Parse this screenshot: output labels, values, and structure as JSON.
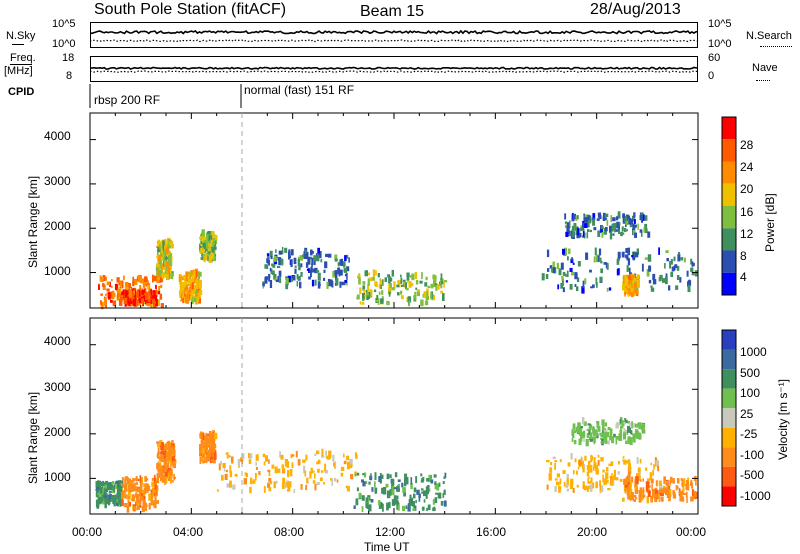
{
  "header": {
    "station": "South Pole Station (fitACF)",
    "beam": "Beam 15",
    "date": "28/Aug/2013"
  },
  "noise_panel": {
    "left_label": "N.Sky",
    "left_ticks": [
      "10^5",
      "10^0"
    ],
    "right_label": "N.Search",
    "right_ticks": [
      "10^5",
      "10^0"
    ]
  },
  "freq_panel": {
    "left_label_1": "Freq.",
    "left_label_2": "[MHz]",
    "left_ticks": [
      "18",
      "8"
    ],
    "right_label": "Nave",
    "right_ticks": [
      "60",
      "0"
    ]
  },
  "cpid": {
    "label": "CPID",
    "mode_1": "rbsp 200 RF",
    "mode_2": "normal (fast) 151 RF"
  },
  "colors": {
    "power_scale": [
      "#0000ff",
      "#2a4fb0",
      "#3f8f5f",
      "#7fbf3f",
      "#f0c000",
      "#ff8c00",
      "#ff5a00",
      "#ff0000"
    ],
    "velocity_scale": [
      "#2a3fc0",
      "#3a6aa0",
      "#3f8f5f",
      "#6fc050",
      "#c8c8bc",
      "#ffb000",
      "#ff8c1a",
      "#ff5a14",
      "#ff0000"
    ]
  },
  "chart_data": [
    {
      "type": "heatmap",
      "name": "Power panel",
      "ylabel": "Slant Range [km]",
      "yticks": [
        "1000",
        "2000",
        "3000",
        "4000"
      ],
      "ylim": [
        200,
        4600
      ],
      "colorbar_label": "Power [dB]",
      "colorbar_ticks": [
        "28",
        "24",
        "20",
        "16",
        "12",
        "8",
        "4"
      ],
      "colorbar_range": [
        0,
        32
      ],
      "regions": [
        {
          "t0": 0.3,
          "t1": 2.8,
          "r0": 250,
          "r1": 900,
          "level": 24
        },
        {
          "t0": 1.2,
          "t1": 2.6,
          "r0": 300,
          "r1": 600,
          "level": 28
        },
        {
          "t0": 2.6,
          "t1": 3.2,
          "r0": 900,
          "r1": 1700,
          "level": 16
        },
        {
          "t0": 3.5,
          "t1": 4.3,
          "r0": 350,
          "r1": 1000,
          "level": 20
        },
        {
          "t0": 4.3,
          "t1": 4.9,
          "r0": 1300,
          "r1": 1900,
          "level": 14
        },
        {
          "t0": 6.8,
          "t1": 10.2,
          "r0": 700,
          "r1": 1500,
          "level": 8
        },
        {
          "t0": 10.5,
          "t1": 14.0,
          "r0": 300,
          "r1": 1000,
          "level": 14
        },
        {
          "t0": 17.8,
          "t1": 23.9,
          "r0": 600,
          "r1": 1500,
          "level": 8
        },
        {
          "t0": 18.7,
          "t1": 22.0,
          "r0": 1800,
          "r1": 2300,
          "level": 8
        },
        {
          "t0": 21.0,
          "t1": 21.6,
          "r0": 500,
          "r1": 900,
          "level": 20
        }
      ]
    },
    {
      "type": "heatmap",
      "name": "Velocity panel",
      "ylabel": "Slant Range [km]",
      "yticks": [
        "1000",
        "2000",
        "3000",
        "4000"
      ],
      "ylim": [
        200,
        4600
      ],
      "xlabel": "Time UT",
      "xticks": [
        "00:00",
        "04:00",
        "08:00",
        "12:00",
        "16:00",
        "20:00",
        "00:00"
      ],
      "xlim": [
        0,
        24
      ],
      "colorbar_label": "Velocity [m s⁻¹]",
      "colorbar_ticks": [
        "1000",
        "500",
        "100",
        "25",
        "-25",
        "-100",
        "-500",
        "-1000"
      ],
      "regions": [
        {
          "t0": 0.2,
          "t1": 1.2,
          "r0": 400,
          "r1": 900,
          "vel": 100
        },
        {
          "t0": 1.2,
          "t1": 2.6,
          "r0": 300,
          "r1": 1000,
          "vel": -500
        },
        {
          "t0": 2.6,
          "t1": 3.3,
          "r0": 900,
          "r1": 1800,
          "vel": -500
        },
        {
          "t0": 4.3,
          "t1": 4.9,
          "r0": 1400,
          "r1": 2000,
          "vel": -500
        },
        {
          "t0": 5.0,
          "t1": 10.5,
          "r0": 700,
          "r1": 1600,
          "vel": -100
        },
        {
          "t0": 10.4,
          "t1": 14.0,
          "r0": 300,
          "r1": 1100,
          "vel": 100
        },
        {
          "t0": 18.0,
          "t1": 22.5,
          "r0": 700,
          "r1": 1500,
          "vel": -100
        },
        {
          "t0": 19.0,
          "t1": 21.8,
          "r0": 1800,
          "r1": 2300,
          "vel": 25
        },
        {
          "t0": 21.0,
          "t1": 23.9,
          "r0": 500,
          "r1": 1000,
          "vel": -500
        }
      ]
    }
  ]
}
